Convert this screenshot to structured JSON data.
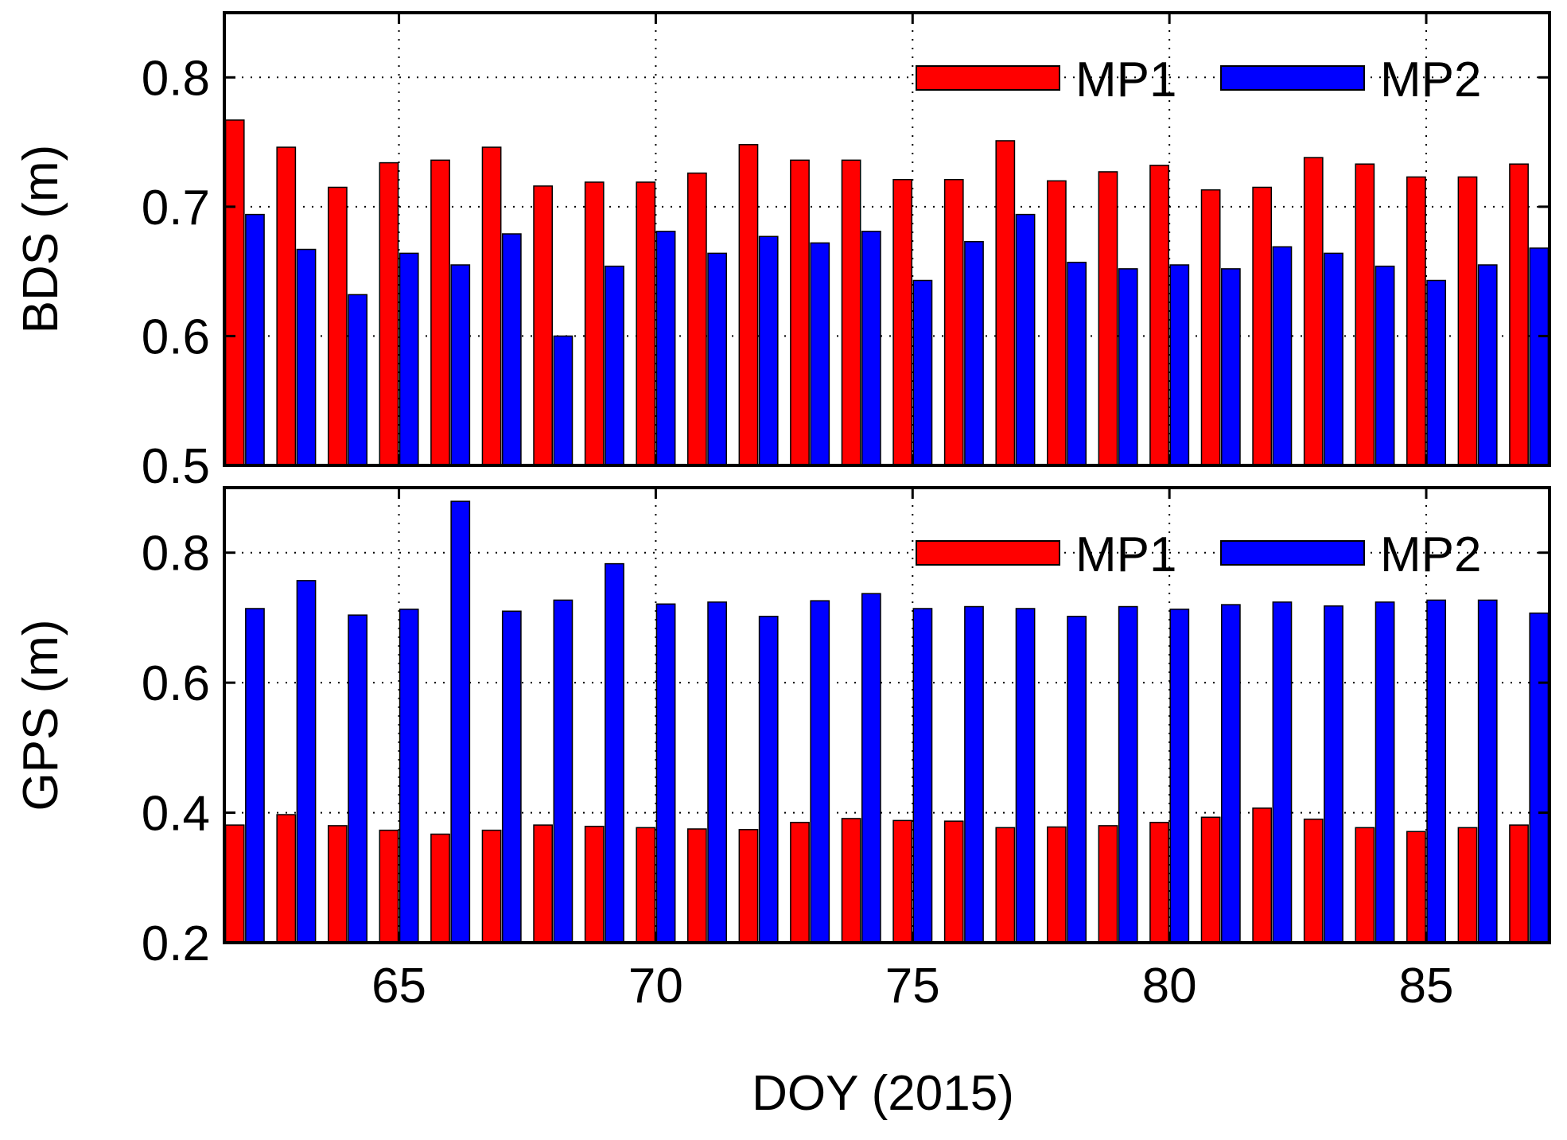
{
  "colors": {
    "mp1": "#ff0000",
    "mp2": "#0000ff",
    "axis": "#000000",
    "background": "#ffffff"
  },
  "shared_xlabel": "DOY (2015)",
  "chart_data": [
    {
      "type": "bar",
      "title": "",
      "ylabel": "BDS (m)",
      "xlabel": "DOY (2015)",
      "x": [
        62,
        63,
        64,
        65,
        66,
        67,
        68,
        69,
        70,
        71,
        72,
        73,
        74,
        75,
        76,
        77,
        78,
        79,
        80,
        81,
        82,
        83,
        84,
        85,
        86,
        87
      ],
      "xlim": [
        61.6,
        87.4
      ],
      "ylim": [
        0.5,
        0.85
      ],
      "xticks": [
        65,
        70,
        75,
        80,
        85
      ],
      "xtick_labels": [
        "65",
        "70",
        "75",
        "80",
        "85"
      ],
      "yticks": [
        0.5,
        0.6,
        0.7,
        0.8
      ],
      "ytick_labels": [
        "0.5",
        "0.6",
        "0.7",
        "0.8"
      ],
      "grid": true,
      "legend_position": "top-right",
      "series": [
        {
          "name": "MP1",
          "color": "#ff0000",
          "values": [
            0.767,
            0.746,
            0.715,
            0.734,
            0.736,
            0.746,
            0.716,
            0.719,
            0.719,
            0.726,
            0.748,
            0.736,
            0.736,
            0.721,
            0.721,
            0.751,
            0.72,
            0.727,
            0.732,
            0.713,
            0.715,
            0.738,
            0.733,
            0.723,
            0.723,
            0.733
          ]
        },
        {
          "name": "MP2",
          "color": "#0000ff",
          "values": [
            0.694,
            0.667,
            0.632,
            0.664,
            0.655,
            0.679,
            0.6,
            0.654,
            0.681,
            0.664,
            0.677,
            0.672,
            0.681,
            0.643,
            0.673,
            0.694,
            0.657,
            0.652,
            0.655,
            0.652,
            0.669,
            0.664,
            0.654,
            0.643,
            0.655,
            0.668
          ]
        }
      ]
    },
    {
      "type": "bar",
      "title": "",
      "ylabel": "GPS (m)",
      "xlabel": "DOY (2015)",
      "x": [
        62,
        63,
        64,
        65,
        66,
        67,
        68,
        69,
        70,
        71,
        72,
        73,
        74,
        75,
        76,
        77,
        78,
        79,
        80,
        81,
        82,
        83,
        84,
        85,
        86,
        87
      ],
      "xlim": [
        61.6,
        87.4
      ],
      "ylim": [
        0.2,
        0.9
      ],
      "xticks": [
        65,
        70,
        75,
        80,
        85
      ],
      "xtick_labels": [
        "65",
        "70",
        "75",
        "80",
        "85"
      ],
      "yticks": [
        0.2,
        0.4,
        0.6,
        0.8
      ],
      "ytick_labels": [
        "0.2",
        "0.4",
        "0.6",
        "0.8"
      ],
      "grid": true,
      "legend_position": "top-right",
      "series": [
        {
          "name": "MP1",
          "color": "#ff0000",
          "values": [
            0.381,
            0.397,
            0.38,
            0.373,
            0.367,
            0.373,
            0.381,
            0.379,
            0.377,
            0.375,
            0.374,
            0.385,
            0.391,
            0.388,
            0.387,
            0.377,
            0.378,
            0.38,
            0.385,
            0.393,
            0.407,
            0.39,
            0.377,
            0.371,
            0.377,
            0.381
          ]
        },
        {
          "name": "MP2",
          "color": "#0000ff",
          "values": [
            0.714,
            0.757,
            0.704,
            0.713,
            0.879,
            0.71,
            0.727,
            0.783,
            0.721,
            0.724,
            0.702,
            0.726,
            0.737,
            0.714,
            0.717,
            0.714,
            0.702,
            0.717,
            0.713,
            0.72,
            0.724,
            0.718,
            0.724,
            0.727,
            0.727,
            0.707
          ]
        }
      ]
    }
  ]
}
